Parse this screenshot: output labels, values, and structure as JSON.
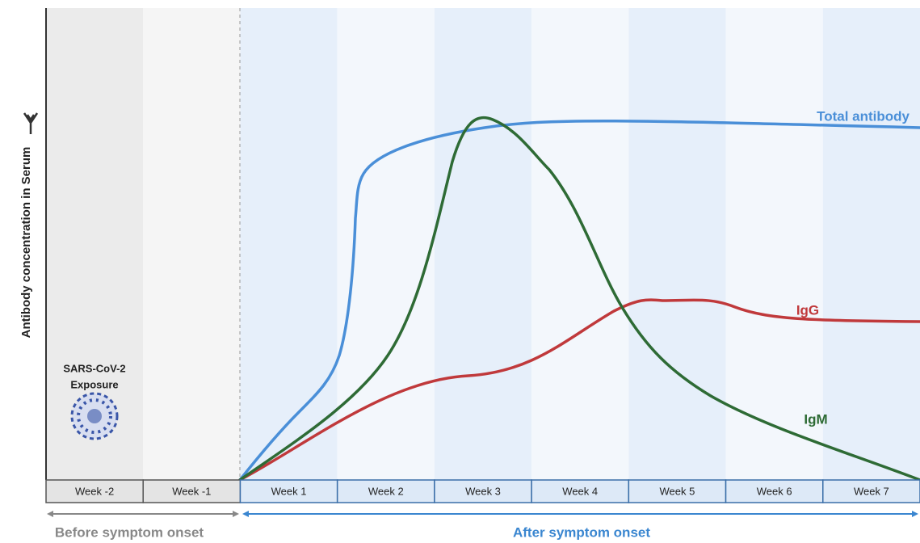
{
  "y_axis_label": "Antibody concentration in Serum",
  "exposure_label": {
    "line1": "SARS-CoV-2",
    "line2": "Exposure"
  },
  "weeks": [
    "Week -2",
    "Week -1",
    "Week 1",
    "Week 2",
    "Week 3",
    "Week 4",
    "Week 5",
    "Week 6",
    "Week 7"
  ],
  "curves": [
    {
      "label": "Total antibody"
    },
    {
      "label": "IgG"
    },
    {
      "label": "IgM"
    }
  ],
  "phases": {
    "before": "Before symptom onset",
    "after": "After symptom onset"
  }
}
